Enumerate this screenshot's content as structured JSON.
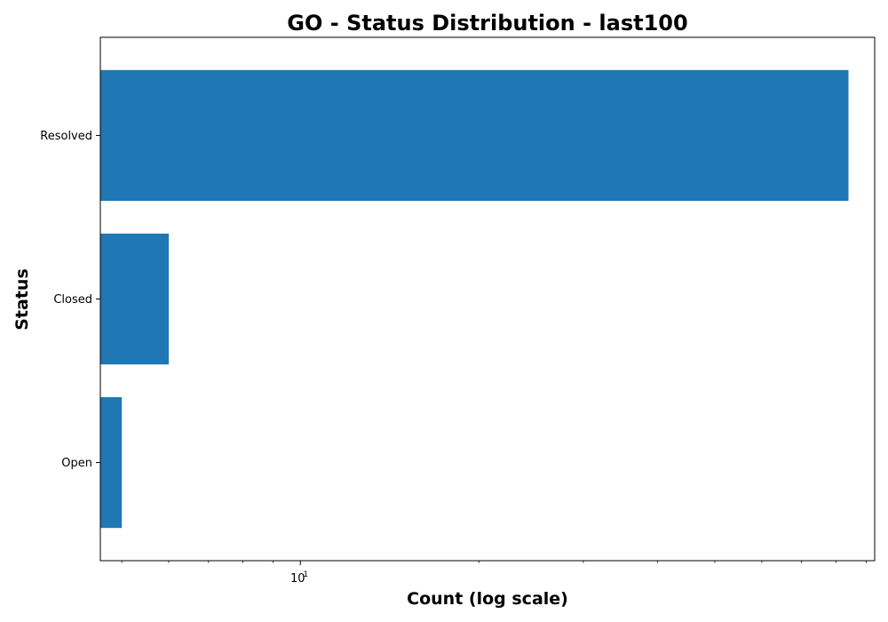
{
  "chart_data": {
    "type": "bar",
    "orientation": "horizontal",
    "title": "GO - Status Distribution - last100",
    "xlabel": "Count (log scale)",
    "ylabel": "Status",
    "x_scale": "log",
    "xlim": [
      4.6,
      93
    ],
    "categories": [
      "Resolved",
      "Closed",
      "Open"
    ],
    "values": [
      84,
      6,
      5
    ],
    "x_major_ticks": [
      {
        "base": "10",
        "exponent": "1",
        "value": 10
      }
    ],
    "x_minor_ticks": [
      5,
      6,
      7,
      8,
      9,
      20,
      30,
      40,
      50,
      60,
      70,
      80,
      90
    ],
    "bar_color": "#1f77b4",
    "grid": false,
    "legend": "none"
  }
}
